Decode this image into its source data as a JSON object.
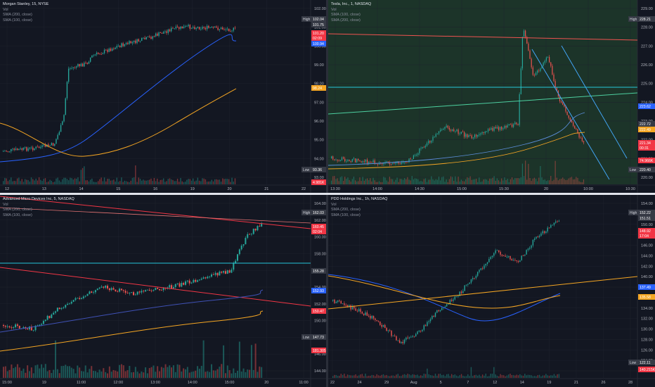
{
  "panes": [
    {
      "id": "ms",
      "title": "Morgan Stanley, 15, NYSE",
      "indicators": [
        "Vol",
        "SMA (200, close)",
        "SMA (100, close)"
      ],
      "price_axis": [
        "102.00",
        "101.00",
        "100.00",
        "99.00",
        "98.00",
        "97.00",
        "96.00",
        "95.00",
        "94.00",
        "93.00"
      ],
      "time_axis": [
        "12",
        "13",
        "14",
        "15",
        "16",
        "19",
        "20",
        "21",
        "22"
      ],
      "badges": [
        {
          "label": "High",
          "value": "102.04",
          "color": "#363a45"
        },
        {
          "label": "",
          "value": "101.75",
          "color": "#363a45"
        },
        {
          "label": "",
          "value": "101.20",
          "color": "#f23645"
        },
        {
          "label": "",
          "value": "02:09",
          "color": "#f23645"
        },
        {
          "label": "",
          "value": "100.94",
          "color": "#2962ff"
        },
        {
          "label": "",
          "value": "98.24",
          "color": "#f5a623"
        },
        {
          "label": "Low",
          "value": "93.36",
          "color": "#363a45"
        },
        {
          "label": "",
          "value": "4.981K",
          "color": "#f23645"
        }
      ]
    },
    {
      "id": "tsla",
      "title": "Tesla, Inc., 1, NASDAQ",
      "indicators": [
        "Vol",
        "SMA (100, close)",
        "SMA (200, close)"
      ],
      "price_axis": [
        "229.00",
        "228.00",
        "227.00",
        "226.00",
        "225.00",
        "224.00",
        "223.00",
        "222.00",
        "221.00",
        "220.00"
      ],
      "time_axis": [
        "13:30",
        "14:00",
        "14:30",
        "15:00",
        "15:30",
        "20",
        "10:00",
        "10:30"
      ],
      "badges": [
        {
          "label": "High",
          "value": "228.21",
          "color": "#363a45"
        },
        {
          "label": "",
          "value": "223.62",
          "color": "#2962ff"
        },
        {
          "label": "",
          "value": "222.72",
          "color": "#363a45"
        },
        {
          "label": "",
          "value": "222.49",
          "color": "#f5a623"
        },
        {
          "label": "",
          "value": "221.34",
          "color": "#f23645"
        },
        {
          "label": "",
          "value": "00:31",
          "color": "#f23645"
        },
        {
          "label": "",
          "value": "74.966K",
          "color": "#f23645"
        },
        {
          "label": "Low",
          "value": "220.40",
          "color": "#363a45"
        }
      ]
    },
    {
      "id": "amd",
      "title": "Advanced Micro Devices Inc, 5, NASDAQ",
      "indicators": [
        "Vol",
        "SMA (200, close)",
        "SMA (100, close)"
      ],
      "price_axis": [
        "164.00",
        "162.00",
        "160.00",
        "158.00",
        "156.00",
        "154.00",
        "152.00",
        "150.00",
        "148.00",
        "146.00",
        "144.00"
      ],
      "time_axis": [
        "15:00",
        "19",
        "11:00",
        "12:00",
        "13:00",
        "14:00",
        "15:00",
        "20",
        "11:00"
      ],
      "badges": [
        {
          "label": "High",
          "value": "162.03",
          "color": "#363a45"
        },
        {
          "label": "",
          "value": "160.45",
          "color": "#f23645"
        },
        {
          "label": "",
          "value": "02:04",
          "color": "#f23645"
        },
        {
          "label": "",
          "value": "155.28",
          "color": "#363a45"
        },
        {
          "label": "",
          "value": "152.93",
          "color": "#2962ff"
        },
        {
          "label": "",
          "value": "150.47",
          "color": "#f23645"
        },
        {
          "label": "Low",
          "value": "147.73",
          "color": "#363a45"
        },
        {
          "label": "",
          "value": "181.305K",
          "color": "#f23645"
        }
      ]
    },
    {
      "id": "pdd",
      "title": "PDD Holdings Inc., 1h, NASDAQ",
      "indicators": [
        "Vol",
        "SMA (200, close)",
        "SMA (100, close)"
      ],
      "price_axis": [
        "154.00",
        "152.00",
        "150.00",
        "148.00",
        "146.00",
        "144.00",
        "142.00",
        "140.00",
        "138.00",
        "136.00",
        "134.00",
        "132.00",
        "130.00",
        "128.00",
        "126.00",
        "124.00",
        "122.00"
      ],
      "time_axis": [
        "22",
        "24",
        "29",
        "Aug",
        "5",
        "7",
        "12",
        "14",
        "19",
        "21",
        "26",
        "28"
      ],
      "badges": [
        {
          "label": "High",
          "value": "152.22",
          "color": "#363a45"
        },
        {
          "label": "",
          "value": "151.51",
          "color": "#363a45"
        },
        {
          "label": "",
          "value": "148.92",
          "color": "#f23645"
        },
        {
          "label": "",
          "value": "17:04",
          "color": "#f23645"
        },
        {
          "label": "",
          "value": "137.49",
          "color": "#2962ff"
        },
        {
          "label": "",
          "value": "135.58",
          "color": "#f5a623"
        },
        {
          "label": "Low",
          "value": "122.11",
          "color": "#363a45"
        },
        {
          "label": "",
          "value": "140.215K",
          "color": "#f23645"
        }
      ]
    }
  ],
  "colors": {
    "up": "#26a69a",
    "down": "#ef5350",
    "sma_blue": "#2962ff",
    "sma_orange": "#f5a623",
    "bg": "#131722",
    "grid": "#1e222d"
  }
}
